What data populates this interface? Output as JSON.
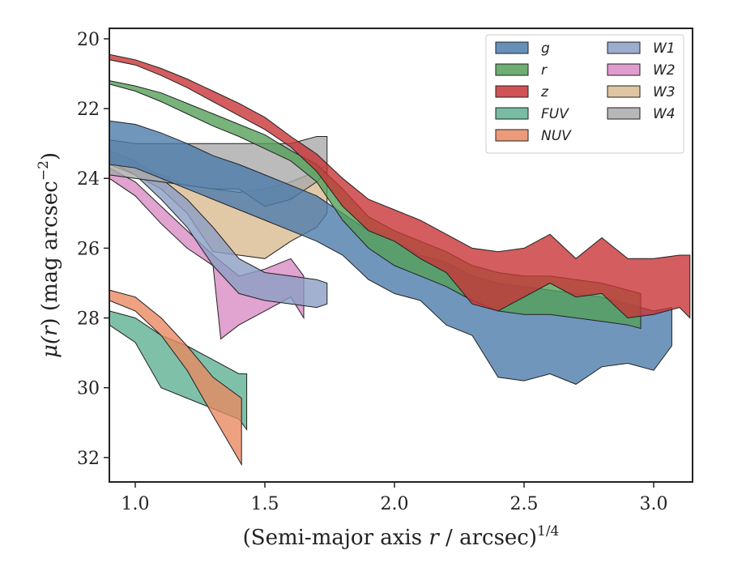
{
  "chart_data": {
    "type": "area",
    "title": "",
    "xlabel_main": "(Semi-major axis ",
    "xlabel_var": "r",
    "xlabel_mid": " / arcsec)",
    "xlabel_sup": "1/4",
    "ylabel_mu": "μ(",
    "ylabel_var": "r",
    "ylabel_rest": ") (mag arcsec",
    "ylabel_sup": "−2",
    "ylabel_close": ")",
    "xlim": [
      0.9,
      3.15
    ],
    "ylim": [
      32.7,
      19.7
    ],
    "y_inverted": true,
    "xticks": [
      1.0,
      1.5,
      2.0,
      2.5,
      3.0
    ],
    "xtick_labels": [
      "1.0",
      "1.5",
      "2.0",
      "2.5",
      "3.0"
    ],
    "yticks": [
      20,
      22,
      24,
      26,
      28,
      30,
      32
    ],
    "ytick_labels": [
      "20",
      "22",
      "24",
      "26",
      "28",
      "30",
      "32"
    ],
    "grid": false,
    "legend_position": "top-right",
    "series": [
      {
        "name": "g",
        "color": "#4c7cab",
        "upper": [
          [
            0.9,
            22.35
          ],
          [
            1.0,
            22.45
          ],
          [
            1.1,
            22.7
          ],
          [
            1.2,
            23.0
          ],
          [
            1.3,
            23.35
          ],
          [
            1.4,
            23.6
          ],
          [
            1.5,
            23.9
          ],
          [
            1.6,
            24.2
          ],
          [
            1.7,
            24.5
          ],
          [
            1.8,
            25.0
          ],
          [
            1.9,
            25.5
          ],
          [
            2.0,
            25.8
          ],
          [
            2.1,
            26.2
          ],
          [
            2.2,
            26.4
          ],
          [
            2.3,
            26.8
          ],
          [
            2.4,
            27.0
          ],
          [
            2.5,
            27.1
          ],
          [
            2.6,
            27.2
          ],
          [
            2.7,
            27.3
          ],
          [
            2.8,
            27.4
          ],
          [
            2.9,
            27.6
          ],
          [
            3.0,
            27.8
          ],
          [
            3.07,
            27.7
          ]
        ],
        "lower": [
          [
            0.9,
            23.6
          ],
          [
            1.0,
            23.7
          ],
          [
            1.1,
            24.0
          ],
          [
            1.2,
            24.3
          ],
          [
            1.3,
            24.6
          ],
          [
            1.4,
            24.9
          ],
          [
            1.5,
            25.2
          ],
          [
            1.6,
            25.5
          ],
          [
            1.7,
            25.8
          ],
          [
            1.8,
            26.2
          ],
          [
            1.9,
            26.9
          ],
          [
            2.0,
            27.3
          ],
          [
            2.1,
            27.5
          ],
          [
            2.2,
            28.2
          ],
          [
            2.3,
            28.5
          ],
          [
            2.4,
            29.7
          ],
          [
            2.5,
            29.8
          ],
          [
            2.6,
            29.6
          ],
          [
            2.7,
            29.9
          ],
          [
            2.8,
            29.4
          ],
          [
            2.9,
            29.3
          ],
          [
            3.0,
            29.5
          ],
          [
            3.07,
            28.8
          ]
        ]
      },
      {
        "name": "r",
        "color": "#55a05a",
        "upper": [
          [
            0.9,
            21.2
          ],
          [
            1.0,
            21.35
          ],
          [
            1.1,
            21.55
          ],
          [
            1.2,
            21.85
          ],
          [
            1.3,
            22.15
          ],
          [
            1.4,
            22.45
          ],
          [
            1.5,
            22.75
          ],
          [
            1.6,
            23.2
          ],
          [
            1.7,
            23.6
          ],
          [
            1.8,
            24.3
          ],
          [
            1.9,
            25.1
          ],
          [
            2.0,
            25.5
          ],
          [
            2.1,
            25.8
          ],
          [
            2.2,
            26.1
          ],
          [
            2.3,
            26.5
          ],
          [
            2.4,
            26.7
          ],
          [
            2.5,
            26.8
          ],
          [
            2.6,
            26.8
          ],
          [
            2.7,
            26.9
          ],
          [
            2.8,
            27.0
          ],
          [
            2.9,
            27.2
          ],
          [
            2.95,
            27.3
          ]
        ],
        "lower": [
          [
            0.9,
            21.3
          ],
          [
            1.0,
            21.5
          ],
          [
            1.1,
            21.8
          ],
          [
            1.2,
            22.15
          ],
          [
            1.3,
            22.5
          ],
          [
            1.4,
            22.8
          ],
          [
            1.5,
            23.15
          ],
          [
            1.6,
            23.5
          ],
          [
            1.7,
            24.1
          ],
          [
            1.8,
            25.2
          ],
          [
            1.9,
            26.0
          ],
          [
            2.0,
            26.5
          ],
          [
            2.1,
            26.8
          ],
          [
            2.2,
            27.1
          ],
          [
            2.3,
            27.5
          ],
          [
            2.4,
            27.8
          ],
          [
            2.5,
            27.9
          ],
          [
            2.6,
            27.9
          ],
          [
            2.7,
            28.0
          ],
          [
            2.8,
            28.1
          ],
          [
            2.9,
            28.2
          ],
          [
            2.95,
            28.3
          ]
        ]
      },
      {
        "name": "z",
        "color": "#c83537",
        "upper": [
          [
            0.9,
            20.45
          ],
          [
            1.0,
            20.6
          ],
          [
            1.1,
            20.85
          ],
          [
            1.2,
            21.15
          ],
          [
            1.3,
            21.5
          ],
          [
            1.4,
            21.85
          ],
          [
            1.5,
            22.25
          ],
          [
            1.6,
            22.8
          ],
          [
            1.7,
            23.3
          ],
          [
            1.8,
            24.0
          ],
          [
            1.9,
            24.6
          ],
          [
            2.0,
            24.9
          ],
          [
            2.1,
            25.2
          ],
          [
            2.2,
            25.6
          ],
          [
            2.3,
            26.0
          ],
          [
            2.4,
            26.1
          ],
          [
            2.5,
            26.0
          ],
          [
            2.6,
            25.6
          ],
          [
            2.7,
            26.3
          ],
          [
            2.8,
            25.7
          ],
          [
            2.9,
            26.3
          ],
          [
            3.0,
            26.3
          ],
          [
            3.1,
            26.2
          ],
          [
            3.14,
            26.2
          ]
        ],
        "lower": [
          [
            0.9,
            20.6
          ],
          [
            1.0,
            20.75
          ],
          [
            1.1,
            21.05
          ],
          [
            1.2,
            21.4
          ],
          [
            1.3,
            21.8
          ],
          [
            1.4,
            22.2
          ],
          [
            1.5,
            22.6
          ],
          [
            1.6,
            23.1
          ],
          [
            1.7,
            23.8
          ],
          [
            1.8,
            24.8
          ],
          [
            1.9,
            25.5
          ],
          [
            2.0,
            25.8
          ],
          [
            2.1,
            26.3
          ],
          [
            2.2,
            26.7
          ],
          [
            2.3,
            27.6
          ],
          [
            2.4,
            27.8
          ],
          [
            2.5,
            27.4
          ],
          [
            2.6,
            27.0
          ],
          [
            2.7,
            27.4
          ],
          [
            2.8,
            27.3
          ],
          [
            2.9,
            28.0
          ],
          [
            3.0,
            27.9
          ],
          [
            3.1,
            27.7
          ],
          [
            3.14,
            28.0
          ]
        ]
      },
      {
        "name": "FUV",
        "color": "#5fb093",
        "upper": [
          [
            0.9,
            27.8
          ],
          [
            1.0,
            28.0
          ],
          [
            1.1,
            28.5
          ],
          [
            1.2,
            28.8
          ],
          [
            1.3,
            29.2
          ],
          [
            1.4,
            29.6
          ],
          [
            1.43,
            29.6
          ]
        ],
        "lower": [
          [
            0.9,
            28.2
          ],
          [
            1.0,
            28.7
          ],
          [
            1.1,
            30.0
          ],
          [
            1.2,
            30.3
          ],
          [
            1.3,
            30.6
          ],
          [
            1.4,
            30.9
          ],
          [
            1.43,
            31.2
          ]
        ]
      },
      {
        "name": "NUV",
        "color": "#e88a62",
        "upper": [
          [
            0.9,
            27.2
          ],
          [
            1.0,
            27.4
          ],
          [
            1.1,
            28.0
          ],
          [
            1.2,
            28.8
          ],
          [
            1.3,
            29.7
          ],
          [
            1.41,
            30.3
          ]
        ],
        "lower": [
          [
            0.9,
            27.5
          ],
          [
            1.0,
            27.8
          ],
          [
            1.1,
            28.5
          ],
          [
            1.2,
            29.5
          ],
          [
            1.3,
            30.8
          ],
          [
            1.41,
            32.2
          ]
        ]
      },
      {
        "name": "W1",
        "color": "#8b9dc3",
        "upper": [
          [
            0.9,
            23.2
          ],
          [
            1.0,
            23.5
          ],
          [
            1.1,
            24.0
          ],
          [
            1.2,
            24.6
          ],
          [
            1.3,
            25.4
          ],
          [
            1.4,
            26.3
          ],
          [
            1.5,
            26.7
          ],
          [
            1.6,
            26.8
          ],
          [
            1.7,
            26.9
          ],
          [
            1.74,
            27.0
          ]
        ],
        "lower": [
          [
            0.9,
            23.5
          ],
          [
            1.0,
            23.9
          ],
          [
            1.1,
            24.6
          ],
          [
            1.2,
            25.4
          ],
          [
            1.3,
            26.5
          ],
          [
            1.4,
            27.3
          ],
          [
            1.5,
            27.5
          ],
          [
            1.6,
            27.6
          ],
          [
            1.7,
            27.7
          ],
          [
            1.74,
            27.6
          ]
        ]
      },
      {
        "name": "W2",
        "color": "#d98cc4",
        "upper": [
          [
            0.9,
            23.7
          ],
          [
            1.0,
            24.1
          ],
          [
            1.1,
            24.8
          ],
          [
            1.2,
            25.5
          ],
          [
            1.3,
            26.2
          ],
          [
            1.4,
            26.8
          ],
          [
            1.5,
            26.6
          ],
          [
            1.6,
            26.3
          ],
          [
            1.65,
            26.8
          ]
        ],
        "lower": [
          [
            0.9,
            24.0
          ],
          [
            1.0,
            24.5
          ],
          [
            1.1,
            25.3
          ],
          [
            1.2,
            26.0
          ],
          [
            1.3,
            26.5
          ],
          [
            1.33,
            28.6
          ],
          [
            1.4,
            28.2
          ],
          [
            1.5,
            27.8
          ],
          [
            1.6,
            27.4
          ],
          [
            1.65,
            28.0
          ]
        ]
      },
      {
        "name": "W3",
        "color": "#d9bb92",
        "upper": [
          [
            0.9,
            23.4
          ],
          [
            1.0,
            23.6
          ],
          [
            1.1,
            23.9
          ],
          [
            1.2,
            24.2
          ],
          [
            1.3,
            24.3
          ],
          [
            1.4,
            24.4
          ],
          [
            1.5,
            24.3
          ],
          [
            1.6,
            24.1
          ],
          [
            1.7,
            23.8
          ],
          [
            1.74,
            23.6
          ]
        ],
        "lower": [
          [
            0.9,
            23.6
          ],
          [
            1.0,
            23.9
          ],
          [
            1.1,
            24.3
          ],
          [
            1.2,
            25.0
          ],
          [
            1.3,
            26.1
          ],
          [
            1.4,
            26.2
          ],
          [
            1.5,
            26.3
          ],
          [
            1.6,
            25.8
          ],
          [
            1.7,
            25.4
          ],
          [
            1.74,
            25.0
          ]
        ]
      },
      {
        "name": "W4",
        "color": "#aaaaaa",
        "upper": [
          [
            0.9,
            22.9
          ],
          [
            1.0,
            23.0
          ],
          [
            1.1,
            23.0
          ],
          [
            1.2,
            23.0
          ],
          [
            1.3,
            23.0
          ],
          [
            1.4,
            23.0
          ],
          [
            1.5,
            23.0
          ],
          [
            1.6,
            23.0
          ],
          [
            1.7,
            22.8
          ],
          [
            1.74,
            22.8
          ]
        ],
        "lower": [
          [
            0.9,
            23.9
          ],
          [
            1.0,
            24.0
          ],
          [
            1.1,
            24.1
          ],
          [
            1.2,
            24.2
          ],
          [
            1.3,
            24.3
          ],
          [
            1.4,
            24.3
          ],
          [
            1.5,
            24.8
          ],
          [
            1.6,
            24.6
          ],
          [
            1.7,
            24.1
          ],
          [
            1.74,
            23.8
          ]
        ]
      }
    ],
    "legend": [
      {
        "label": "g",
        "color": "#4c7cab"
      },
      {
        "label": "r",
        "color": "#55a05a"
      },
      {
        "label": "z",
        "color": "#c83537"
      },
      {
        "label": "FUV",
        "color": "#5fb093"
      },
      {
        "label": "NUV",
        "color": "#e88a62"
      },
      {
        "label": "W1",
        "color": "#8b9dc3"
      },
      {
        "label": "W2",
        "color": "#d98cc4"
      },
      {
        "label": "W3",
        "color": "#d9bb92"
      },
      {
        "label": "W4",
        "color": "#aaaaaa"
      }
    ]
  }
}
